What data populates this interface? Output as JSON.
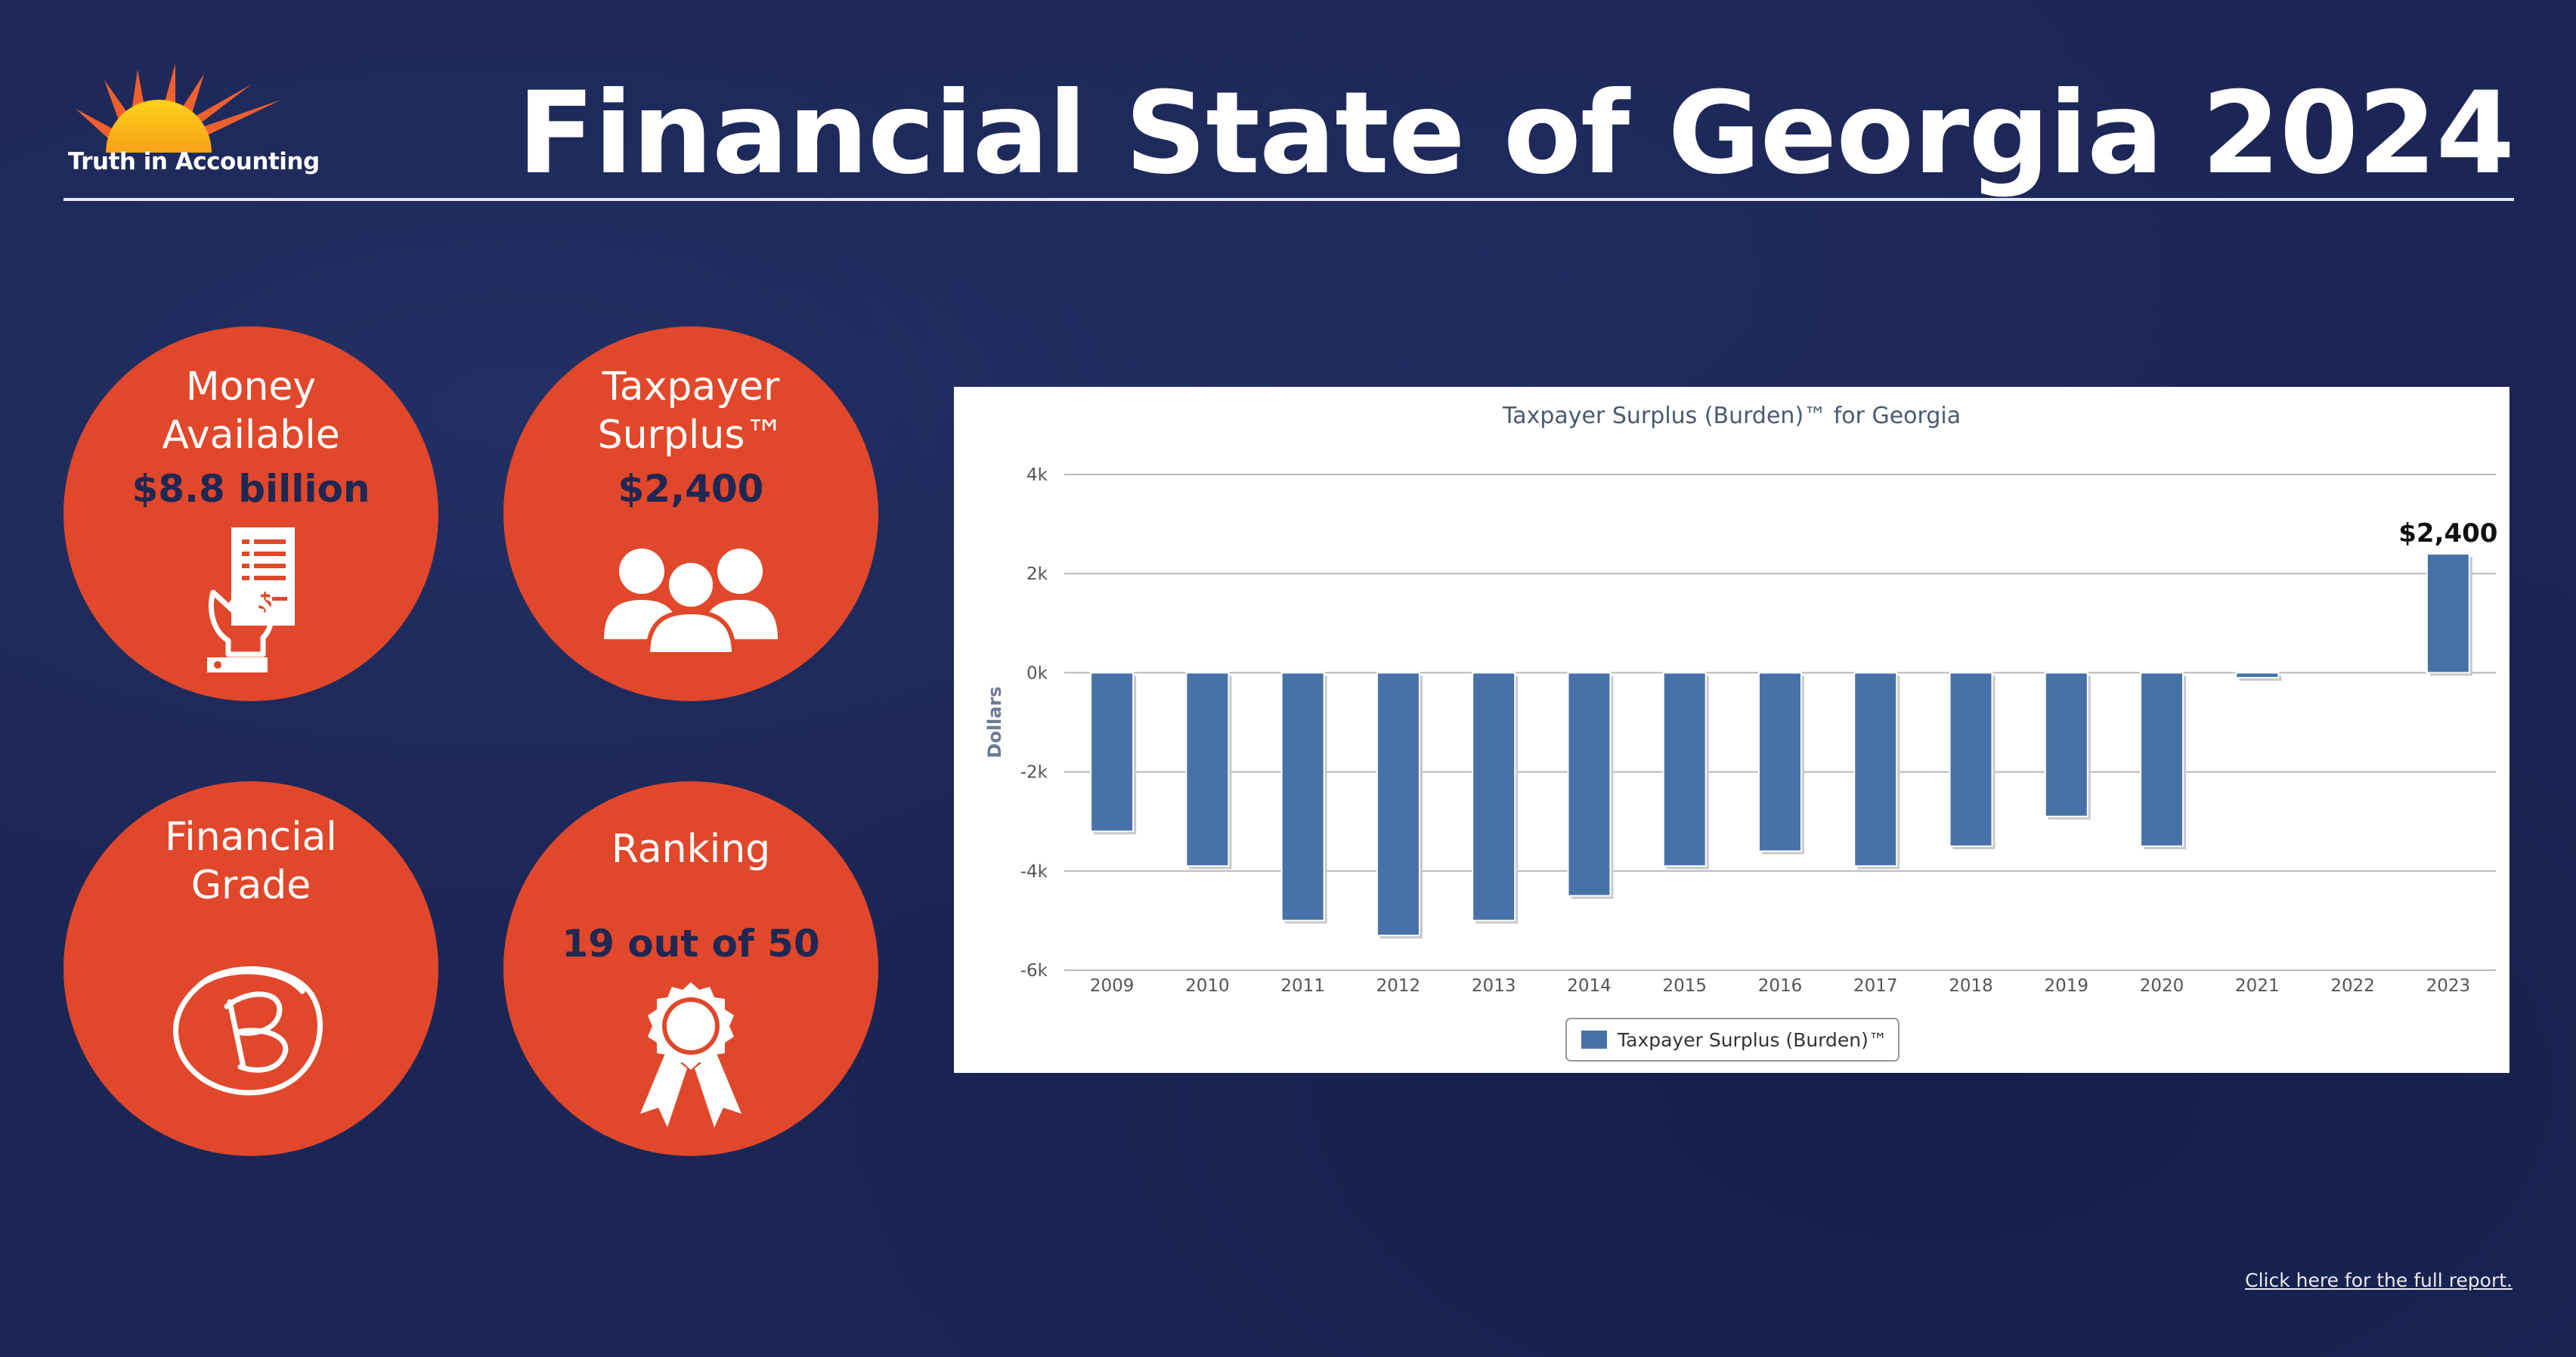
{
  "header": {
    "logo_text": "Truth in Accounting",
    "title": "Financial State of Georgia 2024"
  },
  "tiles": [
    {
      "label_lines": [
        "Money",
        "Available"
      ],
      "value": "$8.8 billion",
      "icon": "receipt-hand-icon"
    },
    {
      "label_lines": [
        "Taxpayer",
        "Surplus™"
      ],
      "value": "$2,400",
      "icon": "people-group-icon"
    },
    {
      "label_lines": [
        "Financial",
        "Grade"
      ],
      "value": "",
      "icon": "grade-b-icon"
    },
    {
      "label_lines": [
        "Ranking"
      ],
      "value": "19 out of 50",
      "icon": "award-ribbon-icon"
    }
  ],
  "colors": {
    "background": "#1c2656",
    "accent": "#e1472a",
    "value_text": "#1f2752",
    "bar": "#4772a8"
  },
  "chart_data": {
    "type": "bar",
    "title": "Taxpayer Surplus (Burden)™ for Georgia",
    "ylabel": "Dollars",
    "xlabel": "",
    "categories": [
      "2009",
      "2010",
      "2011",
      "2012",
      "2013",
      "2014",
      "2015",
      "2016",
      "2017",
      "2018",
      "2019",
      "2020",
      "2021",
      "2022",
      "2023"
    ],
    "series": [
      {
        "name": "Taxpayer Surplus (Burden)™",
        "values": [
          -3200,
          -3900,
          -5000,
          -5300,
          -5000,
          -4500,
          -3900,
          -3600,
          -3900,
          -3500,
          -2900,
          -3500,
          -100,
          0,
          2400
        ]
      }
    ],
    "ylim": [
      -6000,
      4000
    ],
    "yticks": [
      4000,
      2000,
      0,
      -2000,
      -4000,
      -6000
    ],
    "ytick_labels": [
      "4k",
      "2k",
      "0k",
      "-2k",
      "-4k",
      "-6k"
    ],
    "annotations": [
      {
        "category": "2023",
        "text": "$2,400"
      }
    ],
    "legend_position": "bottom-center",
    "grid": true
  },
  "footer": {
    "link_text": "Click here for the full report."
  }
}
